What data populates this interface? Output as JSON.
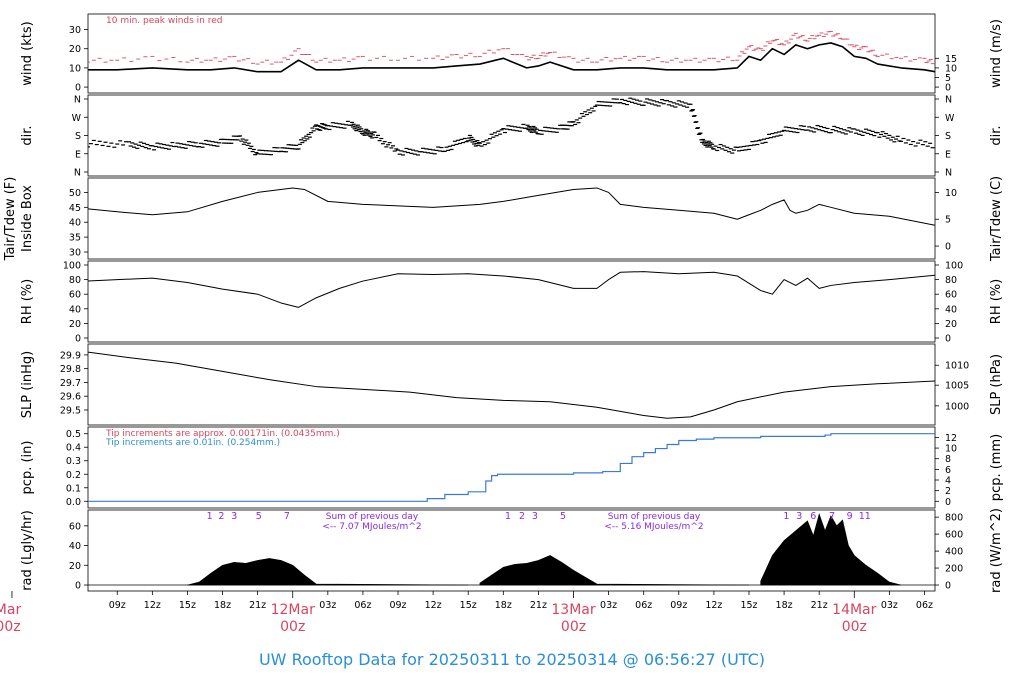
{
  "footer": {
    "title": "UW Rooftop Data for 20250311  to  20250314 @ 06:56:27  (UTC)"
  },
  "colors": {
    "line": "#000000",
    "peak": "#d9455f",
    "precip": "#3a7bd5",
    "note_blue": "#2a8fd6",
    "hours": "#8a2be2",
    "day_label": "#d9455f"
  },
  "chart_data": {
    "type": "line",
    "time_axis": {
      "range_hours": [
        6.5,
        78.9
      ],
      "hour_ticks": [
        "09z",
        "12z",
        "15z",
        "18z",
        "21z",
        "03z",
        "06z",
        "09z",
        "12z",
        "15z",
        "18z",
        "21z",
        "03z",
        "06z",
        "09z",
        "12z",
        "15z",
        "18z",
        "21z",
        "03z",
        "06z"
      ],
      "hour_tick_values": [
        9,
        12,
        15,
        18,
        21,
        27,
        30,
        33,
        36,
        39,
        42,
        45,
        51,
        54,
        57,
        60,
        63,
        66,
        69,
        75,
        78
      ],
      "day_labels": [
        {
          "date": "Mar",
          "time": "00z",
          "hour": 0
        },
        {
          "date": "12Mar",
          "time": "00z",
          "hour": 24
        },
        {
          "date": "13Mar",
          "time": "00z",
          "hour": 48
        },
        {
          "date": "14Mar",
          "time": "00z",
          "hour": 72
        }
      ]
    },
    "panels": [
      {
        "id": "wind",
        "ylabel_left": "wind (kts)",
        "ylabel_right": "wind (m/s)",
        "ylim": [
          -1,
          36
        ],
        "left_ticks": [
          "0",
          "10",
          "20",
          "30"
        ],
        "left_tick_values": [
          0,
          10,
          20,
          30
        ],
        "right_ticks": [
          "0",
          "5",
          "10",
          "15"
        ],
        "right_tick_values": [
          0,
          5,
          10,
          15
        ],
        "annotation": "10 min. peak winds in red",
        "series": [
          {
            "x": [
              6.5,
              9,
              12,
              15,
              17,
              19,
              21,
              23,
              24.5,
              26,
              28,
              30,
              33,
              36,
              38,
              40,
              42,
              44,
              45,
              46,
              48,
              50,
              52,
              54,
              56,
              58,
              60,
              62,
              63,
              64,
              65,
              66,
              67,
              68,
              69,
              70,
              71,
              72,
              73,
              74,
              76,
              78,
              78.9
            ],
            "y": [
              9,
              9,
              10,
              9,
              9,
              10,
              8,
              8,
              14,
              9,
              9,
              10,
              10,
              10,
              11,
              12,
              15,
              10,
              11,
              13,
              9,
              9,
              10,
              10,
              9,
              9,
              9,
              10,
              16,
              14,
              20,
              17,
              22,
              20,
              22,
              23,
              21,
              16,
              15,
              12,
              10,
              9,
              8
            ]
          }
        ]
      },
      {
        "id": "dir",
        "ylabel_left": "dir.",
        "ylabel_right": "dir.",
        "ylim": [
          0,
          360
        ],
        "left_ticks": [
          "N",
          "E",
          "S",
          "W",
          "N"
        ],
        "left_tick_values": [
          0,
          90,
          180,
          270,
          360
        ],
        "right_ticks": [
          "N",
          "E",
          "S",
          "W",
          "N"
        ],
        "right_tick_values": [
          0,
          90,
          180,
          270,
          360
        ],
        "series": [
          {
            "x": [
              6.5,
              10,
              12,
              14,
              16,
              18,
              19.5,
              21,
              23,
              24.5,
              26,
              27,
              29,
              30,
              31,
              33,
              35,
              37,
              39,
              40,
              42,
              44,
              45,
              47,
              48,
              50,
              52,
              54,
              56,
              58,
              59,
              60,
              62,
              64,
              66,
              68,
              70,
              72,
              74,
              76,
              78.9
            ],
            "y": [
              140,
              137,
              125,
              130,
              137,
              145,
              170,
              90,
              110,
              130,
              220,
              225,
              235,
              200,
              180,
              100,
              100,
              110,
              170,
              130,
              210,
              220,
              200,
              215,
              240,
              330,
              350,
              345,
              340,
              330,
              150,
              125,
              105,
              150,
              205,
              215,
              210,
              200,
              190,
              155,
              130
            ]
          }
        ]
      },
      {
        "id": "temp",
        "ylabel_left": "Tair/Tdew (F)",
        "ylabel_left2": "Inside Box",
        "ylabel_right": "Tair/Tdew (C)",
        "ylim": [
          29,
          53.5
        ],
        "left_ticks": [
          "30",
          "35",
          "40",
          "45",
          "50"
        ],
        "left_tick_values": [
          30,
          35,
          40,
          45,
          50
        ],
        "right_ticks": [
          "0",
          "5",
          "10"
        ],
        "right_tick_values": [
          32,
          41,
          50
        ],
        "series": [
          {
            "x": [
              6.5,
              9,
              12,
              15,
              18,
              21,
              24,
              25,
              27,
              30,
              33,
              36,
              40,
              42,
              45,
              48,
              50,
              51,
              52,
              54,
              57,
              60,
              62,
              63,
              64,
              65,
              66,
              66.5,
              67,
              68,
              69,
              70,
              72,
              75,
              78.9
            ],
            "y": [
              44.5,
              43.5,
              42.5,
              43.5,
              47,
              50,
              51.5,
              51,
              47,
              46,
              45.5,
              45,
              46,
              47,
              49,
              51,
              51.5,
              50,
              46,
              45,
              44,
              43,
              41,
              42.5,
              44,
              46,
              47.5,
              44,
              43,
              44,
              46,
              45,
              43,
              42,
              39
            ]
          }
        ]
      },
      {
        "id": "rh",
        "ylabel_left": "RH (%)",
        "ylabel_right": "RH (%)",
        "ylim": [
          0,
          100
        ],
        "left_ticks": [
          "0",
          "20",
          "40",
          "60",
          "80",
          "100"
        ],
        "left_tick_values": [
          0,
          20,
          40,
          60,
          80,
          100
        ],
        "right_ticks": [
          "0",
          "20",
          "40",
          "60",
          "80",
          "100"
        ],
        "right_tick_values": [
          0,
          20,
          40,
          60,
          80,
          100
        ],
        "series": [
          {
            "x": [
              6.5,
              9,
              12,
              15,
              18,
              21,
              23,
              24.5,
              26,
              28,
              30,
              33,
              36,
              39,
              42,
              45,
              48,
              50,
              51,
              52,
              54,
              57,
              60,
              62,
              64,
              65,
              66,
              67,
              68,
              69,
              70,
              72,
              75,
              78.9
            ],
            "y": [
              78,
              80,
              82,
              76,
              67,
              60,
              48,
              42,
              55,
              68,
              78,
              88,
              87,
              88,
              85,
              80,
              68,
              68,
              80,
              90,
              91,
              88,
              90,
              85,
              65,
              60,
              80,
              72,
              82,
              68,
              72,
              76,
              80,
              86
            ]
          }
        ]
      },
      {
        "id": "slp",
        "ylabel_left": "SLP (inHg)",
        "ylabel_right": "SLP (hPa)",
        "ylim": [
          29.42,
          29.95
        ],
        "left_ticks": [
          "29.5",
          "29.6",
          "29.7",
          "29.8",
          "29.9"
        ],
        "left_tick_values": [
          29.5,
          29.6,
          29.7,
          29.8,
          29.9
        ],
        "right_ticks": [
          "1000",
          "1005",
          "1010"
        ],
        "right_tick_values": [
          29.53,
          29.68,
          29.825
        ],
        "series": [
          {
            "x": [
              6.5,
              10,
              14,
              18,
              22,
              26,
              30,
              34,
              38,
              42,
              46,
              50,
              54,
              56,
              58,
              60,
              62,
              66,
              70,
              74,
              78.9
            ],
            "y": [
              29.92,
              29.88,
              29.84,
              29.78,
              29.72,
              29.67,
              29.65,
              29.63,
              29.59,
              29.57,
              29.56,
              29.52,
              29.46,
              29.44,
              29.45,
              29.5,
              29.56,
              29.63,
              29.67,
              29.69,
              29.71
            ]
          }
        ]
      },
      {
        "id": "pcp",
        "ylabel_left": "pcp. (in)",
        "ylabel_right": "pcp. (mm)",
        "ylim": [
          -0.02,
          0.52
        ],
        "left_ticks": [
          "0.0",
          "0.1",
          "0.2",
          "0.3",
          "0.4",
          "0.5"
        ],
        "left_tick_values": [
          0,
          0.1,
          0.2,
          0.3,
          0.4,
          0.5
        ],
        "right_ticks": [
          "0",
          "2",
          "4",
          "6",
          "8",
          "10",
          "12"
        ],
        "right_tick_values": [
          0,
          0.0787,
          0.1575,
          0.2362,
          0.315,
          0.3937,
          0.4724
        ],
        "annotations": [
          {
            "text": "Tip increments are approx. 0.00171in. (0.0435mm.)",
            "color": "peak"
          },
          {
            "text": "Tip increments are 0.01in. (0.254mm.)",
            "color": "note_blue"
          }
        ],
        "series": [
          {
            "step": true,
            "x": [
              6.5,
              35,
              35.5,
              37,
              39,
              40.5,
              41,
              41.5,
              45,
              48,
              50.5,
              52,
              53,
              54,
              55,
              56,
              57,
              58,
              58.5,
              60,
              62,
              64,
              66,
              68,
              69.5,
              70,
              72,
              74,
              76,
              78.9
            ],
            "y": [
              0,
              0,
              0.02,
              0.05,
              0.07,
              0.15,
              0.19,
              0.2,
              0.2,
              0.21,
              0.22,
              0.28,
              0.33,
              0.36,
              0.39,
              0.42,
              0.45,
              0.45,
              0.46,
              0.47,
              0.47,
              0.48,
              0.48,
              0.48,
              0.49,
              0.5,
              0.5,
              0.5,
              0.5,
              0.5
            ]
          }
        ]
      },
      {
        "id": "rad",
        "ylabel_left": "rad (Lgly/hr)",
        "ylabel_right": "rad (W/m^2)",
        "ylim": [
          -2,
          72
        ],
        "left_ticks": [
          "0",
          "20",
          "40",
          "60"
        ],
        "left_tick_values": [
          0,
          20,
          40,
          60
        ],
        "right_ticks": [
          "0",
          "200",
          "400",
          "600",
          "800"
        ],
        "right_tick_values": [
          0,
          17.2,
          34.4,
          51.6,
          68.8
        ],
        "day_totals": [
          {
            "label": "Sum of previous day",
            "value": "<-- 7.07 MJoules/m^2"
          },
          {
            "label": "Sum of previous day",
            "value": "<-- 5.16 MJoules/m^2"
          }
        ],
        "hour_marks": [
          {
            "label": "1",
            "hour": 16.9
          },
          {
            "label": "2",
            "hour": 17.9
          },
          {
            "label": "3",
            "hour": 19.0
          },
          {
            "label": "5",
            "hour": 21.1
          },
          {
            "label": "7",
            "hour": 23.5
          },
          {
            "label": "1",
            "hour": 42.4
          },
          {
            "label": "2",
            "hour": 43.6
          },
          {
            "label": "3",
            "hour": 44.7
          },
          {
            "label": "5",
            "hour": 47.1
          },
          {
            "label": "1",
            "hour": 66.2
          },
          {
            "label": "3",
            "hour": 67.3
          },
          {
            "label": "6",
            "hour": 68.5
          },
          {
            "label": "7",
            "hour": 70.1
          },
          {
            "label": "9",
            "hour": 71.6
          },
          {
            "label": "11",
            "hour": 72.9
          }
        ],
        "series": [
          {
            "fill": true,
            "x": [
              15,
              16,
              17,
              18,
              19,
              20,
              21,
              22,
              23,
              24,
              25,
              26,
              39,
              40,
              41,
              42,
              43,
              44,
              45,
              46,
              47,
              48,
              49,
              50,
              63,
              64,
              65,
              66,
              67,
              68,
              68.5,
              69,
              69.5,
              70,
              70.5,
              71,
              71.5,
              72,
              73,
              74,
              75,
              76
            ],
            "y": [
              0,
              3,
              12,
              20,
              23,
              22,
              25,
              27,
              25,
              20,
              10,
              1,
              0,
              2,
              10,
              18,
              21,
              22,
              25,
              30,
              23,
              15,
              8,
              1,
              0,
              4,
              30,
              45,
              55,
              65,
              50,
              72,
              55,
              70,
              60,
              66,
              40,
              30,
              20,
              12,
              3,
              0
            ]
          }
        ]
      }
    ]
  }
}
